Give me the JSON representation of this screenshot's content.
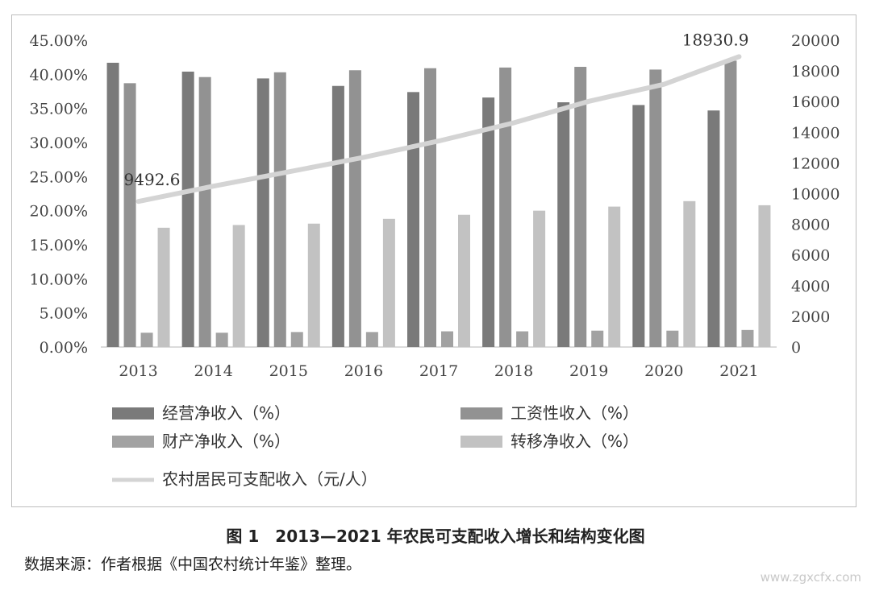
{
  "chart_data": {
    "type": "bar",
    "categories": [
      "2013",
      "2014",
      "2015",
      "2016",
      "2017",
      "2018",
      "2019",
      "2020",
      "2021"
    ],
    "series": [
      {
        "name": "经营净收入（%）",
        "color": "#7a7a7a",
        "values": [
          41.7,
          40.4,
          39.4,
          38.3,
          37.4,
          36.6,
          35.9,
          35.5,
          34.7
        ]
      },
      {
        "name": "工资性收入（%）",
        "color": "#929292",
        "values": [
          38.7,
          39.6,
          40.3,
          40.6,
          40.9,
          41.0,
          41.1,
          40.7,
          42.0
        ]
      },
      {
        "name": "财产净收入（%）",
        "color": "#a2a2a2",
        "values": [
          2.1,
          2.1,
          2.2,
          2.2,
          2.3,
          2.3,
          2.4,
          2.4,
          2.5
        ]
      },
      {
        "name": "转移净收入（%）",
        "color": "#c2c2c2",
        "values": [
          17.5,
          17.9,
          18.1,
          18.8,
          19.4,
          20.0,
          20.6,
          21.4,
          20.8
        ]
      }
    ],
    "line_series": {
      "name": "农村居民可支配收入（元/人）",
      "color": "#d4d4d4",
      "values": [
        9492.6,
        10488.9,
        11421.7,
        12363.4,
        13432.4,
        14617.0,
        16020.7,
        17131.5,
        18930.9
      ],
      "labels": [
        "9492.6",
        "",
        "",
        "",
        "",
        "",
        "",
        "",
        "18930.9"
      ]
    },
    "y_left": {
      "ylim": [
        0,
        45
      ],
      "ticks": [
        "0.00%",
        "5.00%",
        "10.00%",
        "15.00%",
        "20.00%",
        "25.00%",
        "30.00%",
        "35.00%",
        "40.00%",
        "45.00%"
      ]
    },
    "y_right": {
      "ylim": [
        0,
        20000
      ],
      "ticks": [
        "0",
        "2000",
        "4000",
        "6000",
        "8000",
        "10000",
        "12000",
        "14000",
        "16000",
        "18000",
        "20000"
      ]
    },
    "legend_placement": "bottom"
  },
  "caption": "图 1　2013—2021 年农民可支配收入增长和结构变化图",
  "source_note": "数据来源：作者根据《中国农村统计年鉴》整理。",
  "watermark": "www.zgxcfx.com"
}
